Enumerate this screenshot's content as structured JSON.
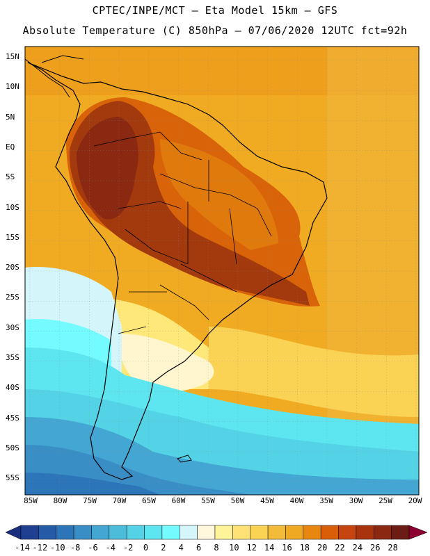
{
  "header": {
    "line1": "CPTEC/INPE/MCT –  Eta Model 15km – GFS",
    "line2": "Absolute Temperature (C) 850hPa – 07/06/2020 12UTC fct=92h"
  },
  "latitude_labels": [
    "15N",
    "10N",
    "5N",
    "EQ",
    "5S",
    "10S",
    "15S",
    "20S",
    "25S",
    "30S",
    "35S",
    "40S",
    "45S",
    "50S",
    "55S"
  ],
  "longitude_labels": [
    "85W",
    "80W",
    "75W",
    "70W",
    "65W",
    "60W",
    "55W",
    "50W",
    "45W",
    "40W",
    "35W",
    "30W",
    "25W",
    "20W"
  ],
  "colorbar": {
    "labels": [
      "-14",
      "-12",
      "-10",
      "-8",
      "-6",
      "-4",
      "-2",
      "0",
      "2",
      "4",
      "6",
      "8",
      "10",
      "12",
      "14",
      "16",
      "18",
      "20",
      "22",
      "24",
      "26",
      "28"
    ],
    "colors": [
      "#1f3f91",
      "#245aa6",
      "#2b75b8",
      "#3a8ec6",
      "#44a6d2",
      "#4cbcdb",
      "#55d3e6",
      "#5ee6f0",
      "#74fbff",
      "#d4f6fb",
      "#fff8df",
      "#fff49a",
      "#ffe276",
      "#fad254",
      "#f2bc3a",
      "#f0a923",
      "#e8870f",
      "#d95e08",
      "#c54410",
      "#a8330c",
      "#8a2812",
      "#6c1c15"
    ],
    "low_color": "#1a2f7d",
    "high_color": "#8b0030"
  },
  "colors": {
    "ocean_warm": "#f0ab23",
    "land_hot": "#a23a0e",
    "land_warm": "#d86309",
    "yellow": "#ffe87a",
    "cold_cyan": "#55d3e6",
    "cold_blue": "#2b75b8"
  }
}
